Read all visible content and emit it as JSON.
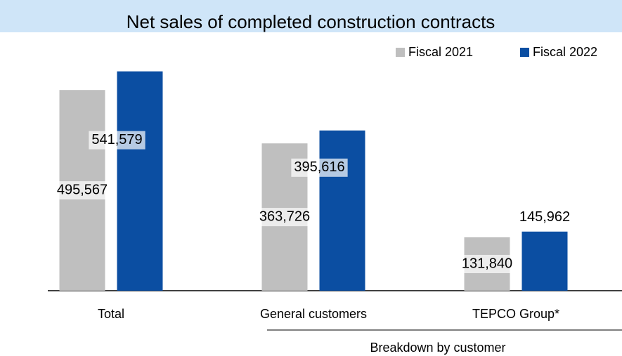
{
  "chart_data": {
    "type": "bar",
    "title": "Net sales of completed construction contracts",
    "categories": [
      "Total",
      "General customers",
      "TEPCO Group*"
    ],
    "series": [
      {
        "name": "Fiscal 2021",
        "color": "#bfbfbf",
        "values": [
          495567,
          363726,
          131840
        ],
        "value_labels": [
          "495,567",
          "363,726",
          "131,840"
        ]
      },
      {
        "name": "Fiscal 2022",
        "color": "#0b4ea2",
        "values": [
          541579,
          395616,
          145962
        ],
        "value_labels": [
          "541,579",
          "395,616",
          "145,962"
        ]
      }
    ],
    "ylim": [
      0,
      560000
    ],
    "annotation": "Breakdown by customer",
    "legend": "top-right"
  }
}
